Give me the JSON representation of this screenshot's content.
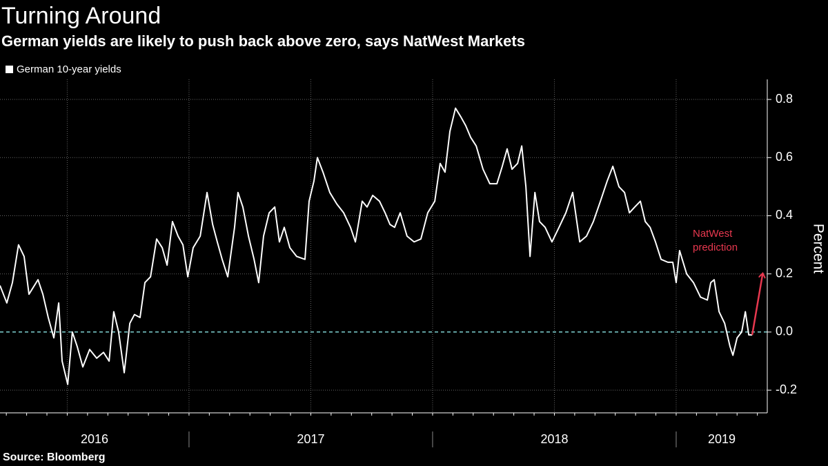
{
  "chart_data": {
    "type": "line",
    "title": "Turning Around",
    "subtitle": "German yields are likely to push back above zero, says NatWest Markets",
    "y_label": "Percent",
    "source": "Source: Bloomberg",
    "series": [
      {
        "name": "German 10-year yields",
        "color": "#ffffff",
        "x": [
          2016.224,
          2016.252,
          2016.275,
          2016.3,
          2016.323,
          2016.343,
          2016.38,
          2016.4,
          2016.422,
          2016.445,
          2016.465,
          2016.479,
          2016.502,
          2016.521,
          2016.541,
          2016.564,
          2016.592,
          2016.621,
          2016.649,
          2016.672,
          2016.691,
          2016.711,
          2016.734,
          2016.757,
          2016.776,
          2016.799,
          2016.819,
          2016.842,
          2016.867,
          2016.89,
          2016.91,
          2016.932,
          2016.955,
          2016.975,
          2016.995,
          2017.017,
          2017.046,
          2017.074,
          2017.097,
          2017.116,
          2017.136,
          2017.159,
          2017.187,
          2017.201,
          2017.221,
          2017.244,
          2017.267,
          2017.286,
          2017.306,
          2017.329,
          2017.352,
          2017.371,
          2017.391,
          2017.414,
          2017.442,
          2017.476,
          2017.493,
          2017.513,
          2017.527,
          2017.55,
          2017.578,
          2017.607,
          2017.635,
          2017.663,
          2017.683,
          2017.711,
          2017.731,
          2017.754,
          2017.782,
          2017.805,
          2017.825,
          2017.844,
          2017.867,
          2017.895,
          2017.924,
          2017.952,
          2017.98,
          2018.009,
          2018.031,
          2018.051,
          2018.071,
          2018.094,
          2018.116,
          2018.136,
          2018.156,
          2018.179,
          2018.207,
          2018.235,
          2018.264,
          2018.286,
          2018.306,
          2018.326,
          2018.349,
          2018.366,
          2018.383,
          2018.4,
          2018.42,
          2018.439,
          2018.462,
          2018.49,
          2018.519,
          2018.547,
          2018.575,
          2018.604,
          2018.632,
          2018.66,
          2018.689,
          2018.717,
          2018.74,
          2018.765,
          2018.788,
          2018.808,
          2018.83,
          2018.853,
          2018.873,
          2018.893,
          2018.915,
          2018.938,
          2018.966,
          2018.986,
          2019.0,
          2019.014,
          2019.043,
          2019.071,
          2019.1,
          2019.128,
          2019.142,
          2019.156,
          2019.176,
          2019.199,
          2019.221,
          2019.233,
          2019.25,
          2019.269,
          2019.284,
          2019.298,
          2019.312
        ],
        "values": [
          0.16,
          0.1,
          0.17,
          0.3,
          0.26,
          0.13,
          0.18,
          0.13,
          0.05,
          -0.02,
          0.1,
          -0.1,
          -0.18,
          0.0,
          -0.05,
          -0.12,
          -0.06,
          -0.09,
          -0.07,
          -0.1,
          0.07,
          0.0,
          -0.14,
          0.03,
          0.06,
          0.05,
          0.17,
          0.19,
          0.32,
          0.29,
          0.23,
          0.38,
          0.33,
          0.3,
          0.19,
          0.29,
          0.33,
          0.48,
          0.37,
          0.31,
          0.25,
          0.19,
          0.36,
          0.48,
          0.43,
          0.33,
          0.25,
          0.17,
          0.33,
          0.41,
          0.43,
          0.31,
          0.36,
          0.29,
          0.26,
          0.25,
          0.45,
          0.52,
          0.6,
          0.55,
          0.48,
          0.44,
          0.41,
          0.36,
          0.31,
          0.45,
          0.43,
          0.47,
          0.45,
          0.41,
          0.37,
          0.36,
          0.41,
          0.33,
          0.31,
          0.32,
          0.41,
          0.45,
          0.58,
          0.55,
          0.69,
          0.77,
          0.74,
          0.71,
          0.67,
          0.64,
          0.56,
          0.51,
          0.51,
          0.57,
          0.63,
          0.56,
          0.58,
          0.64,
          0.5,
          0.26,
          0.48,
          0.38,
          0.36,
          0.31,
          0.36,
          0.41,
          0.48,
          0.31,
          0.33,
          0.38,
          0.45,
          0.52,
          0.57,
          0.5,
          0.48,
          0.41,
          0.43,
          0.45,
          0.38,
          0.36,
          0.31,
          0.25,
          0.24,
          0.24,
          0.17,
          0.28,
          0.2,
          0.17,
          0.12,
          0.11,
          0.17,
          0.18,
          0.07,
          0.03,
          -0.05,
          -0.08,
          -0.02,
          0.0,
          0.07,
          -0.01,
          -0.01
        ]
      }
    ],
    "prediction": {
      "label": [
        "NatWest",
        "prediction"
      ],
      "color": "#e8384f",
      "x": [
        2019.312,
        2019.355
      ],
      "values": [
        -0.01,
        0.2
      ]
    },
    "xlim": [
      2016.224,
      2019.374
    ],
    "xticks": [
      2016,
      2017,
      2018,
      2019
    ],
    "xgrid": [
      2016.5,
      2017,
      2017.5,
      2018,
      2018.5,
      2019
    ],
    "ylim": [
      -0.278,
      0.869
    ],
    "yticks": [
      -0.2,
      {
        "value": 0,
        "label": "0.0"
      },
      0.2,
      0.4,
      0.6,
      0.8
    ],
    "grid": true,
    "zero_line_color": "#7fd3d3"
  }
}
